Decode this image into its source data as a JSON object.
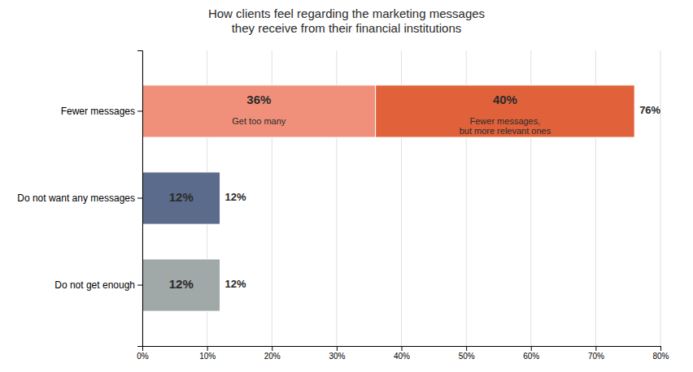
{
  "chart_data": {
    "type": "bar",
    "orientation": "horizontal",
    "stacked": true,
    "data_labels": true,
    "grid": true,
    "title": "How clients feel regarding the marketing messages\nthey receive from their financial institutions",
    "categories": [
      "Fewer messages",
      "Do not want any messages",
      "Do not get enough"
    ],
    "series": [
      {
        "values": [
          36,
          12,
          12
        ],
        "value_labels": [
          "36%",
          "12%",
          "12%"
        ],
        "colors": [
          "#f0907a",
          "#5a6b8c",
          "#a0a8a8"
        ]
      },
      {
        "values": [
          40,
          null,
          null
        ],
        "value_labels": [
          "40%",
          null,
          null
        ],
        "colors": [
          "#e0613a",
          null,
          null
        ]
      }
    ],
    "annotations": [
      {
        "text": "Get too many",
        "series": 0,
        "category": "Fewer messages"
      },
      {
        "text": "Fewer messages,\nbut more relevant ones",
        "series": 1,
        "category": "Fewer messages"
      }
    ],
    "totals": [
      76,
      12,
      12
    ],
    "total_labels": [
      "76%",
      "12%",
      "12%"
    ],
    "xlim": [
      0,
      80
    ],
    "xticks": [
      {
        "value": 0,
        "label": "0%"
      },
      {
        "value": 10,
        "label": "10%"
      },
      {
        "value": 20,
        "label": "20%"
      },
      {
        "value": 30,
        "label": "30%"
      },
      {
        "value": 40,
        "label": "40%"
      },
      {
        "value": 50,
        "label": "50%"
      },
      {
        "value": 60,
        "label": "60%"
      },
      {
        "value": 70,
        "label": "70%"
      },
      {
        "value": 80,
        "label": "80%"
      }
    ]
  }
}
